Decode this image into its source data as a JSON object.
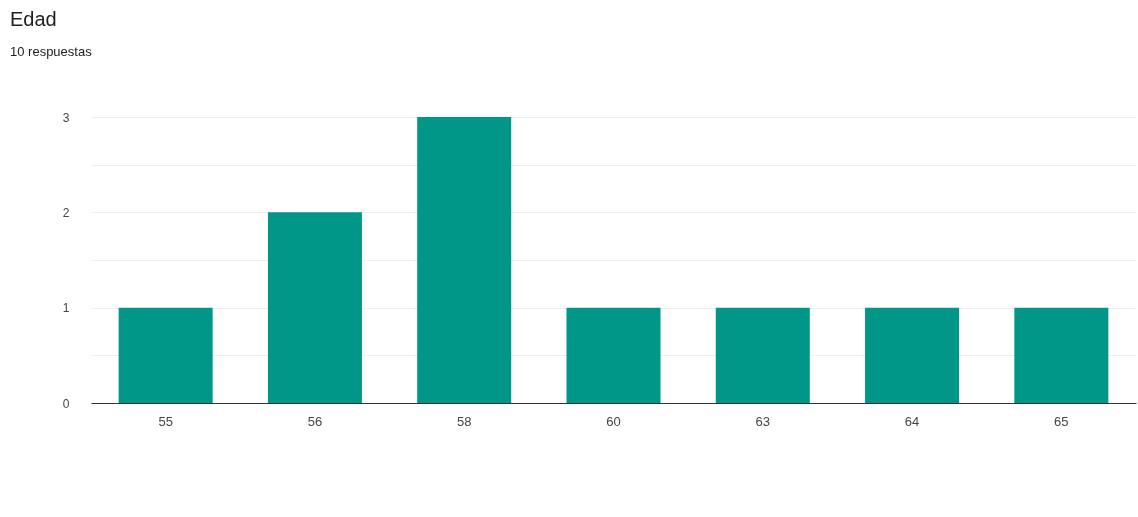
{
  "chart_data": {
    "type": "bar",
    "title": "Edad",
    "subtitle": "10 respuestas",
    "categories": [
      "55",
      "56",
      "58",
      "60",
      "63",
      "64",
      "65"
    ],
    "values": [
      1,
      2,
      3,
      1,
      1,
      1,
      1
    ],
    "color": "#009688",
    "ylim": [
      0,
      3
    ],
    "yticks": [
      0,
      {
        "value": 0.5,
        "label": null
      },
      1,
      {
        "value": 1.5,
        "label": null
      },
      2,
      {
        "value": 2.5,
        "label": null
      },
      3
    ],
    "grid": "y"
  }
}
